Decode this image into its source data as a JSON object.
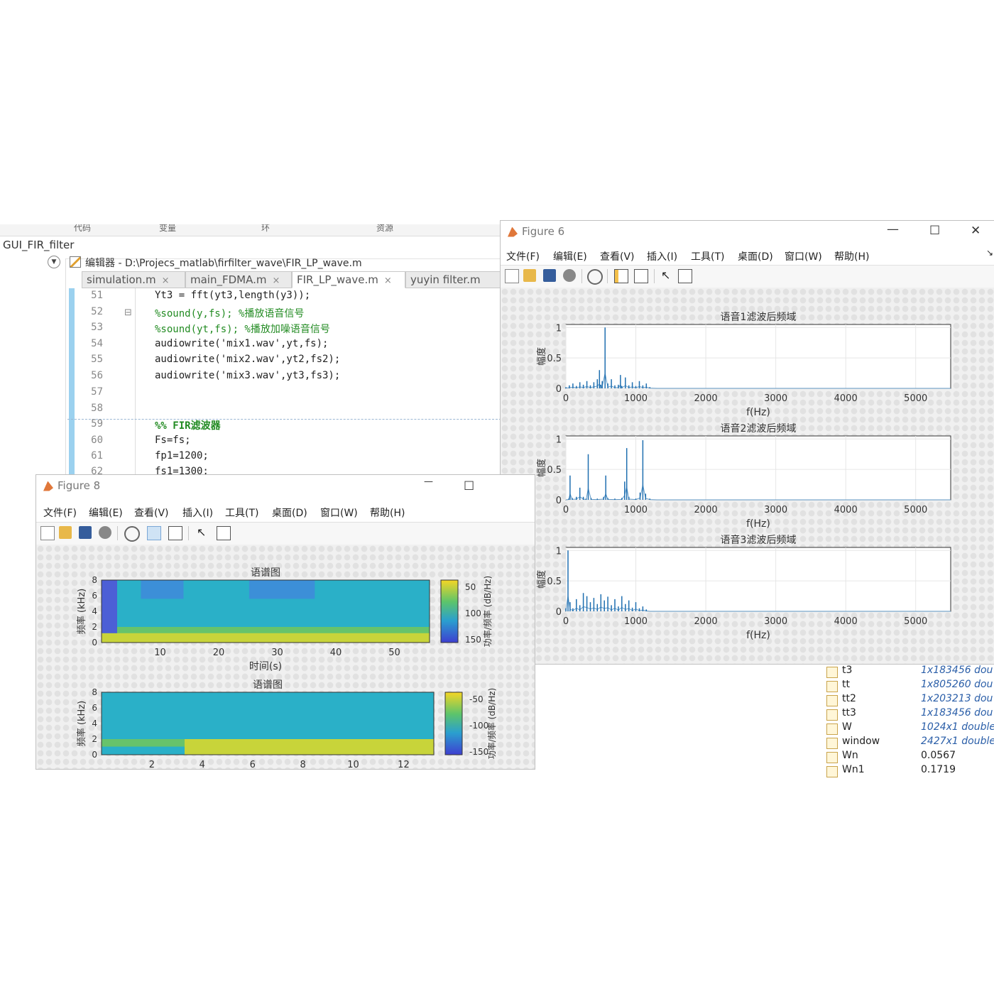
{
  "matlab": {
    "toolstrip_fragments": [
      "代码",
      "变量",
      "环",
      "资源"
    ],
    "current_folder": "GUI_FIR_filter",
    "editor_title": "编辑器 - D:\\Projecs_matlab\\firfilter_wave\\FIR_LP_wave.m",
    "tabs": [
      {
        "label": "simulation.m",
        "close": "×"
      },
      {
        "label": "main_FDMA.m",
        "close": "×"
      },
      {
        "label": "FIR_LP_wave.m",
        "close": "×"
      },
      {
        "label": "yuyin filter.m",
        "close": ""
      }
    ],
    "code": [
      {
        "ln": "51",
        "text": "Yt3 = fft(yt3,length(y3));",
        "kind": "code"
      },
      {
        "ln": "52",
        "text": "%sound(y,fs); %播放语音信号",
        "kind": "comment"
      },
      {
        "ln": "53",
        "text": "%sound(yt,fs); %播放加噪语音信号",
        "kind": "comment"
      },
      {
        "ln": "54",
        "text": "audiowrite('mix1.wav',yt,fs);",
        "kind": "code"
      },
      {
        "ln": "55",
        "text": "audiowrite('mix2.wav',yt2,fs2);",
        "kind": "code"
      },
      {
        "ln": "56",
        "text": "audiowrite('mix3.wav',yt3,fs3);",
        "kind": "code"
      },
      {
        "ln": "57",
        "text": "",
        "kind": "code"
      },
      {
        "ln": "58",
        "text": "",
        "kind": "code"
      },
      {
        "ln": "59",
        "text": "%% FIR滤波器",
        "kind": "section"
      },
      {
        "ln": "60",
        "text": "Fs=fs;",
        "kind": "code"
      },
      {
        "ln": "61",
        "text": "fp1=1200;",
        "kind": "code"
      },
      {
        "ln": "62",
        "text": "fs1=1300;",
        "kind": "code"
      }
    ],
    "fold_marker": "⊟"
  },
  "figure6": {
    "title": "Figure 6",
    "window_buttons": {
      "min": "—",
      "max": "☐",
      "close": "✕"
    },
    "menu": [
      "文件(F)",
      "编辑(E)",
      "查看(V)",
      "插入(I)",
      "工具(T)",
      "桌面(D)",
      "窗口(W)",
      "帮助(H)"
    ]
  },
  "figure8": {
    "title": "Figure 8",
    "window_buttons": {
      "min": "—",
      "max": "☐"
    },
    "menu": [
      "文件(F)",
      "编辑(E)",
      "查看(V)",
      "插入(I)",
      "工具(T)",
      "桌面(D)",
      "窗口(W)",
      "帮助(H)"
    ]
  },
  "workspace": [
    {
      "name": "t3",
      "value": "1x183456 dou",
      "italic": true
    },
    {
      "name": "tt",
      "value": "1x805260 dou",
      "italic": true
    },
    {
      "name": "tt2",
      "value": "1x203213 dou",
      "italic": true
    },
    {
      "name": "tt3",
      "value": "1x183456 dou",
      "italic": true
    },
    {
      "name": "W",
      "value": "1024x1 double",
      "italic": true
    },
    {
      "name": "window",
      "value": "2427x1 double",
      "italic": true
    },
    {
      "name": "Wn",
      "value": "0.0567",
      "italic": false
    },
    {
      "name": "Wn1",
      "value": "0.1719",
      "italic": false
    }
  ],
  "colors": {
    "line": "#1f6fb0",
    "grid": "#e6e6e6",
    "code_comment": "#228b22",
    "editor_mark": "#9bd1ef"
  },
  "chart_data": [
    {
      "type": "line",
      "title": "语音1滤波后频域",
      "xlabel": "f(Hz)",
      "ylabel": "幅度",
      "xlim": [
        0,
        5500
      ],
      "ylim": [
        0,
        1.05
      ],
      "xticks": [
        "0",
        "1000",
        "2000",
        "3000",
        "4000",
        "5000"
      ],
      "yticks": [
        "0",
        "0.5",
        "1"
      ],
      "grid": true,
      "x": [
        0,
        50,
        100,
        150,
        200,
        250,
        300,
        350,
        400,
        450,
        480,
        500,
        520,
        560,
        600,
        650,
        700,
        750,
        780,
        800,
        850,
        900,
        950,
        1000,
        1050,
        1100,
        1150,
        1200,
        1300,
        2000,
        3000,
        4000,
        5000,
        5500
      ],
      "values": [
        0.02,
        0.05,
        0.08,
        0.04,
        0.1,
        0.06,
        0.12,
        0.05,
        0.1,
        0.15,
        0.3,
        0.06,
        0.12,
        1.0,
        0.08,
        0.15,
        0.05,
        0.06,
        0.22,
        0.04,
        0.18,
        0.05,
        0.1,
        0.04,
        0.12,
        0.05,
        0.08,
        0.02,
        0.0,
        0.0,
        0.0,
        0.0,
        0.0,
        0.0
      ]
    },
    {
      "type": "line",
      "title": "语音2滤波后频域",
      "xlabel": "f(Hz)",
      "ylabel": "幅度",
      "xlim": [
        0,
        5500
      ],
      "ylim": [
        0,
        1.05
      ],
      "xticks": [
        "0",
        "1000",
        "2000",
        "3000",
        "4000",
        "5000"
      ],
      "yticks": [
        "0",
        "0.5",
        "1"
      ],
      "grid": true,
      "x": [
        0,
        40,
        60,
        90,
        150,
        200,
        250,
        290,
        320,
        360,
        450,
        540,
        570,
        600,
        700,
        800,
        840,
        870,
        900,
        1000,
        1060,
        1100,
        1140,
        1200,
        1300,
        2000,
        3000,
        4000,
        5000,
        5500
      ],
      "values": [
        0.0,
        0.02,
        0.4,
        0.03,
        0.05,
        0.2,
        0.05,
        0.02,
        0.75,
        0.03,
        0.02,
        0.05,
        0.4,
        0.03,
        0.02,
        0.03,
        0.3,
        0.85,
        0.05,
        0.02,
        0.12,
        0.98,
        0.1,
        0.02,
        0.0,
        0.0,
        0.0,
        0.0,
        0.0,
        0.0
      ]
    },
    {
      "type": "line",
      "title": "语音3滤波后频域",
      "xlabel": "f(Hz)",
      "ylabel": "幅度",
      "xlim": [
        0,
        5500
      ],
      "ylim": [
        0,
        1.05
      ],
      "xticks": [
        "0",
        "1000",
        "2000",
        "3000",
        "4000",
        "5000"
      ],
      "yticks": [
        "0",
        "0.5",
        "1"
      ],
      "grid": true,
      "x": [
        0,
        30,
        60,
        100,
        150,
        200,
        250,
        300,
        350,
        400,
        450,
        500,
        550,
        600,
        650,
        700,
        750,
        800,
        850,
        900,
        950,
        1000,
        1050,
        1100,
        1150,
        1200,
        2000,
        3000,
        4000,
        5000,
        5500
      ],
      "values": [
        0.05,
        1.0,
        0.15,
        0.05,
        0.2,
        0.1,
        0.3,
        0.25,
        0.15,
        0.22,
        0.12,
        0.28,
        0.18,
        0.24,
        0.1,
        0.2,
        0.08,
        0.25,
        0.12,
        0.18,
        0.06,
        0.15,
        0.05,
        0.08,
        0.03,
        0.0,
        0.0,
        0.0,
        0.0,
        0.0,
        0.0
      ]
    },
    {
      "type": "heatmap",
      "title": "语谱图",
      "xlabel": "时间(s)",
      "ylabel": "频率 (kHz)",
      "xticks": [
        "10",
        "20",
        "30",
        "40",
        "50"
      ],
      "yticks": [
        "0",
        "2",
        "4",
        "6",
        "8"
      ],
      "colorbar_ticks": [
        "50",
        "100",
        "150"
      ],
      "colorbar_label": "功率/频率 (dB/Hz)"
    },
    {
      "type": "heatmap",
      "title": "语谱图",
      "xlabel": "",
      "ylabel": "频率 (kHz)",
      "xticks": [
        "2",
        "4",
        "6",
        "8",
        "10",
        "12"
      ],
      "yticks": [
        "0",
        "2",
        "4",
        "6",
        "8"
      ],
      "colorbar_ticks": [
        "-50",
        "-100",
        "-150"
      ],
      "colorbar_label": "功率/频率 (dB/Hz)"
    }
  ]
}
